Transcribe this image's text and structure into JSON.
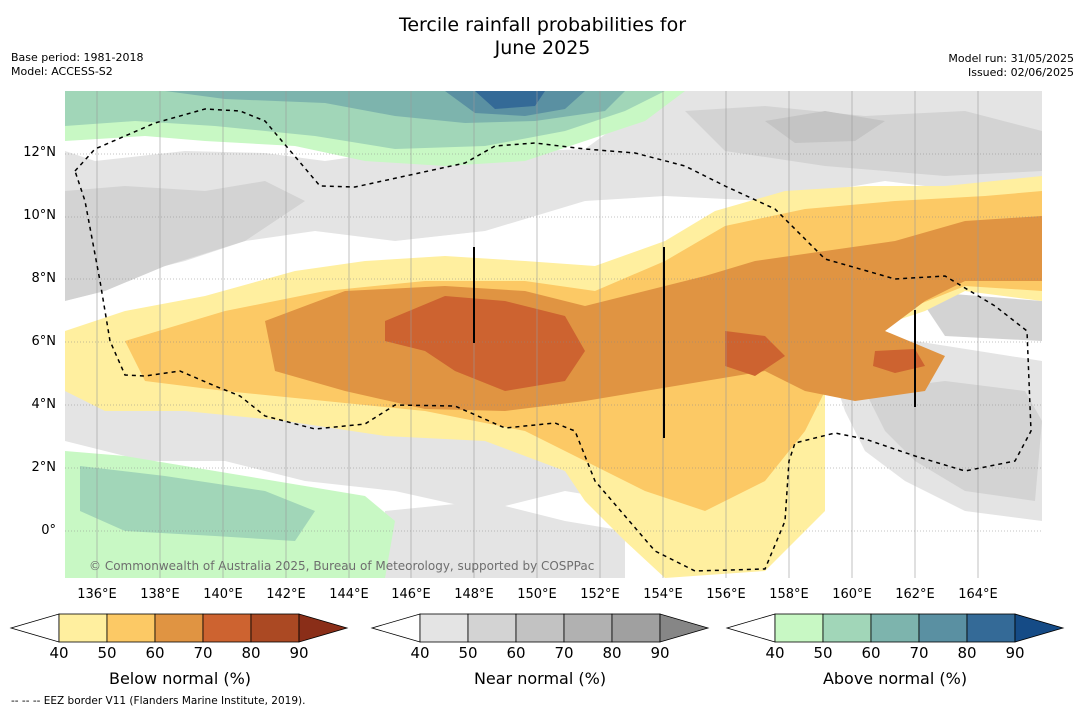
{
  "title_line1": "Tercile rainfall probabilities for",
  "title_line2": "June 2025",
  "meta": {
    "base_period": "Base period: 1981-2018",
    "model": "Model: ACCESS-S2",
    "model_run": "Model run: 31/05/2025",
    "issued": "Issued: 02/06/2025"
  },
  "map": {
    "copyright": "© Commonwealth of Australia 2025, Bureau of Meteorology, supported by COSPPac",
    "lat_ticks": [
      "12°N",
      "10°N",
      "8°N",
      "6°N",
      "4°N",
      "2°N",
      "0°"
    ],
    "lon_ticks": [
      "136°E",
      "138°E",
      "140°E",
      "142°E",
      "144°E",
      "146°E",
      "148°E",
      "150°E",
      "152°E",
      "154°E",
      "156°E",
      "158°E",
      "160°E",
      "162°E",
      "164°E"
    ]
  },
  "colorbars": [
    {
      "label": "Below normal (%)",
      "ticks": [
        "40",
        "50",
        "60",
        "70",
        "80",
        "90"
      ],
      "colors": [
        "#ffef9f",
        "#fcc965",
        "#e09442",
        "#cd6330",
        "#ab4923",
        "#8a2e18"
      ]
    },
    {
      "label": "Near normal (%)",
      "ticks": [
        "40",
        "50",
        "60",
        "70",
        "80",
        "90"
      ],
      "colors": [
        "#e4e4e4",
        "#d3d3d3",
        "#c2c2c2",
        "#b1b1b1",
        "#a0a0a0",
        "#868686"
      ]
    },
    {
      "label": "Above normal (%)",
      "ticks": [
        "40",
        "50",
        "60",
        "70",
        "80",
        "90"
      ],
      "colors": [
        "#c8f8c4",
        "#a1d6b8",
        "#7db4ad",
        "#5a90a2",
        "#346a97",
        "#154b86"
      ]
    }
  ],
  "footnote": "--  --  -- EEZ border V11 (Flanders Marine Institute, 2019)."
}
